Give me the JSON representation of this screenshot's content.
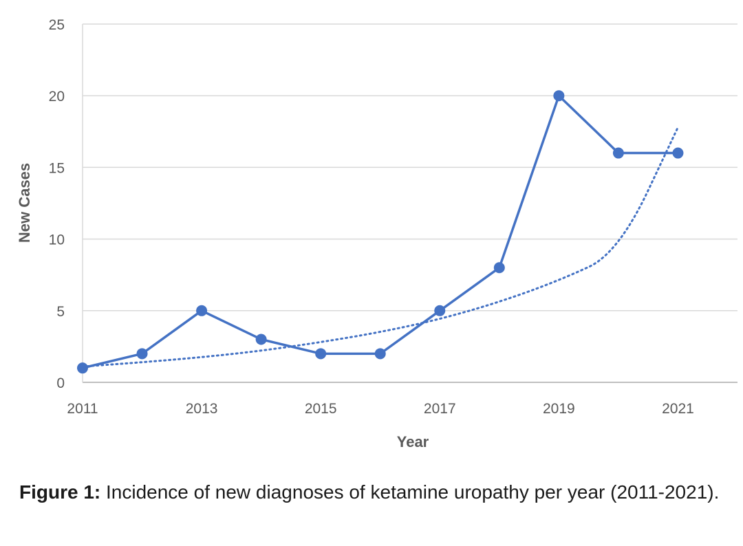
{
  "chart_data": {
    "type": "line",
    "x": [
      2011,
      2012,
      2013,
      2014,
      2015,
      2016,
      2017,
      2018,
      2019,
      2020,
      2021
    ],
    "series": [
      {
        "values": [
          1,
          2,
          5,
          3,
          2,
          2,
          5,
          8,
          20,
          16,
          16
        ],
        "color": "#4472c4",
        "markers": true
      },
      {
        "trendline": "exponential",
        "style": "dotted",
        "color": "#4472c4",
        "values": [
          1.1,
          1.4,
          1.75,
          2.2,
          2.8,
          3.5,
          4.4,
          5.6,
          7.1,
          9.0,
          17.8
        ]
      }
    ],
    "xticks": [
      "2011",
      "2013",
      "2015",
      "2017",
      "2019",
      "2021"
    ],
    "yticks": [
      "0",
      "5",
      "10",
      "15",
      "20",
      "25"
    ],
    "xlabel": "Year",
    "ylabel": "New Cases",
    "xlim": [
      2011,
      2022
    ],
    "ylim": [
      0,
      25
    ],
    "grid": "horizontal",
    "legend": "none"
  },
  "caption": {
    "label": "Figure 1:",
    "text": " Incidence of new diagnoses of ketamine uropathy per year (2011-2021)."
  }
}
